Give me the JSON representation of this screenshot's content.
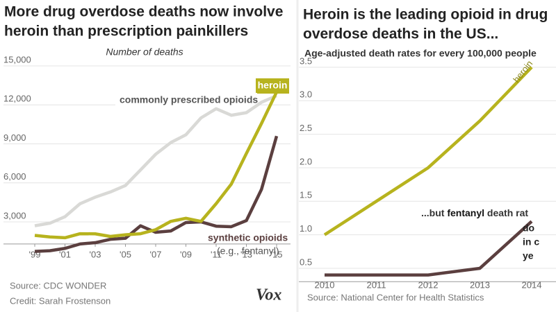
{
  "chart_data": [
    {
      "type": "line",
      "title": [
        "More drug overdose deaths now involve",
        "heroin than prescription painkillers"
      ],
      "subtitle": "Number of deaths",
      "x": [
        1999,
        2000,
        2001,
        2002,
        2003,
        2004,
        2005,
        2006,
        2007,
        2008,
        2009,
        2010,
        2011,
        2012,
        2013,
        2014,
        2015
      ],
      "xlim": [
        1998.6,
        2015.8
      ],
      "xticks": [
        {
          "value": 1999,
          "label": "'99"
        },
        {
          "value": 2001,
          "label": "'01"
        },
        {
          "value": 2003,
          "label": "'03"
        },
        {
          "value": 2005,
          "label": "'05"
        },
        {
          "value": 2007,
          "label": "'07"
        },
        {
          "value": 2009,
          "label": "'09"
        },
        {
          "value": 2011,
          "label": "'11"
        },
        {
          "value": 2013,
          "label": "'13"
        },
        {
          "value": 2015,
          "label": "'15"
        }
      ],
      "ylim": [
        1300,
        15500
      ],
      "yticks": [
        {
          "value": 3000,
          "label": "3,000"
        },
        {
          "value": 6000,
          "label": "6,000"
        },
        {
          "value": 9000,
          "label": "9,000"
        },
        {
          "value": 12000,
          "label": "12,000"
        },
        {
          "value": 15000,
          "label": "15,000"
        }
      ],
      "grid": true,
      "series": [
        {
          "name": "commonly prescribed opioids",
          "color": "#d9d9d6",
          "values": [
            2700,
            2900,
            3400,
            4400,
            4900,
            5300,
            5800,
            7000,
            8200,
            9100,
            9700,
            11000,
            11700,
            11200,
            11400,
            12200,
            12700
          ]
        },
        {
          "name": "synthetic opioids",
          "color": "#5b3f3f",
          "values": [
            730,
            780,
            960,
            1300,
            1400,
            1660,
            1740,
            2700,
            2200,
            2300,
            2950,
            3000,
            2670,
            2630,
            3100,
            5500,
            9600
          ]
        },
        {
          "name": "heroin",
          "color": "#b7b31e",
          "values": [
            1960,
            1840,
            1780,
            2090,
            2080,
            1880,
            2010,
            2090,
            2400,
            3040,
            3280,
            3040,
            4400,
            5900,
            8260,
            10570,
            12990
          ]
        }
      ],
      "annotations": [
        "heroin",
        "commonly prescribed opioids",
        "synthetic opioids",
        "(e.g., fentanyl)"
      ],
      "source": "Source: CDC WONDER",
      "credit": "Credit: Sarah Frostenson",
      "logo": "Vox"
    },
    {
      "type": "line",
      "title": [
        "Heroin is the leading opioid in drug",
        "overdose deaths in the US..."
      ],
      "subtitle": "Age-adjusted death rates for every 100,000 people",
      "x": [
        2010,
        2011,
        2012,
        2013,
        2014
      ],
      "xlim": [
        2009.6,
        2014.45
      ],
      "xticks": [
        2010,
        2011,
        2012,
        2013,
        2014
      ],
      "ylim": [
        0.3,
        3.6
      ],
      "yticks": [
        0.5,
        {
          "value": 1,
          "label": "1.0"
        },
        1.5,
        {
          "value": 2,
          "label": "2.0"
        },
        2.5,
        {
          "value": 3,
          "label": "3.0"
        },
        3.5
      ],
      "grid": true,
      "series": [
        {
          "name": "heroin",
          "color": "#b7b31e",
          "values": [
            1.0,
            1.5,
            2.0,
            2.7,
            3.5
          ]
        },
        {
          "name": "fentanyl",
          "color": "#5b3f3f",
          "values": [
            0.4,
            0.4,
            0.4,
            0.5,
            1.2
          ]
        }
      ],
      "annotations": [
        "heroin",
        [
          "...but ",
          "fentanyl",
          " death rat"
        ],
        "do",
        "in c",
        "ye"
      ],
      "source": "Source: National Center for Health Statistics"
    }
  ]
}
